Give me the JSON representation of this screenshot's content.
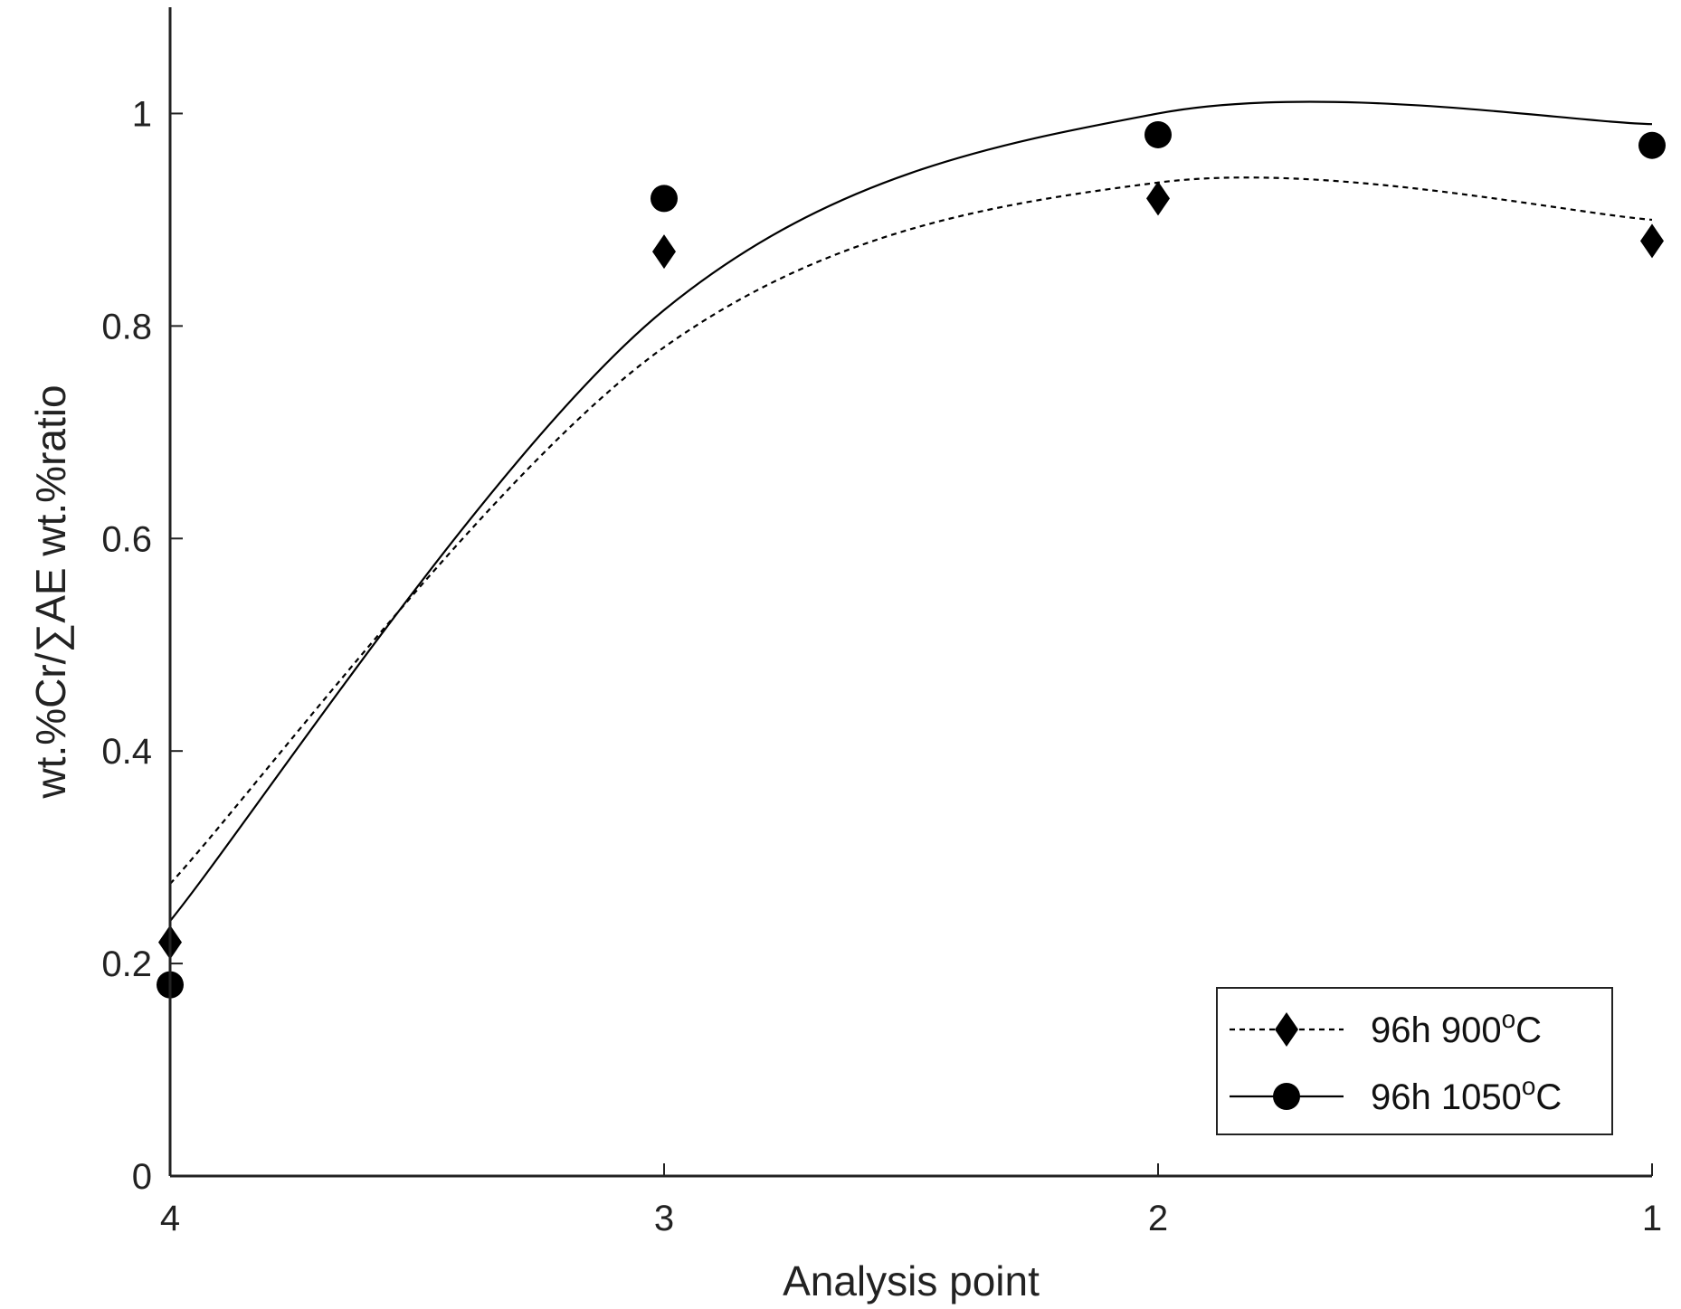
{
  "chart_data": {
    "type": "scatter",
    "xlabel": "Analysis point",
    "ylabel": "wt.%Cr/∑AE wt.%ratio",
    "x_categories": [
      "4",
      "3",
      "2",
      "1"
    ],
    "x_order": "reversed",
    "ylim": [
      0,
      1.1
    ],
    "yticks": [
      0,
      0.2,
      0.4,
      0.6,
      0.8,
      1
    ],
    "ytick_labels": [
      "0",
      "0.2",
      "0.4",
      "0.6",
      "0.8",
      "1"
    ],
    "grid": false,
    "legend_position": "bottom-right",
    "series": [
      {
        "name": "96h 900",
        "name_sup": "o",
        "name_suffix": "C",
        "marker": "diamond",
        "line_style": "dashed",
        "color": "#000000",
        "points": [
          {
            "x": "4",
            "y": 0.22
          },
          {
            "x": "3",
            "y": 0.87
          },
          {
            "x": "2",
            "y": 0.92
          },
          {
            "x": "1",
            "y": 0.88
          }
        ],
        "fit": [
          {
            "x": "4",
            "y": 0.275
          },
          {
            "x": "3",
            "y": 0.78
          },
          {
            "x": "2",
            "y": 0.935
          },
          {
            "x": "1",
            "y": 0.9
          }
        ]
      },
      {
        "name": "96h 1050",
        "name_sup": "o",
        "name_suffix": "C",
        "marker": "circle",
        "line_style": "solid",
        "color": "#000000",
        "points": [
          {
            "x": "4",
            "y": 0.18
          },
          {
            "x": "3",
            "y": 0.92
          },
          {
            "x": "2",
            "y": 0.98
          },
          {
            "x": "1",
            "y": 0.97
          }
        ],
        "fit": [
          {
            "x": "4",
            "y": 0.24
          },
          {
            "x": "3",
            "y": 0.815
          },
          {
            "x": "2",
            "y": 1.0
          },
          {
            "x": "1",
            "y": 0.99
          }
        ]
      }
    ]
  }
}
